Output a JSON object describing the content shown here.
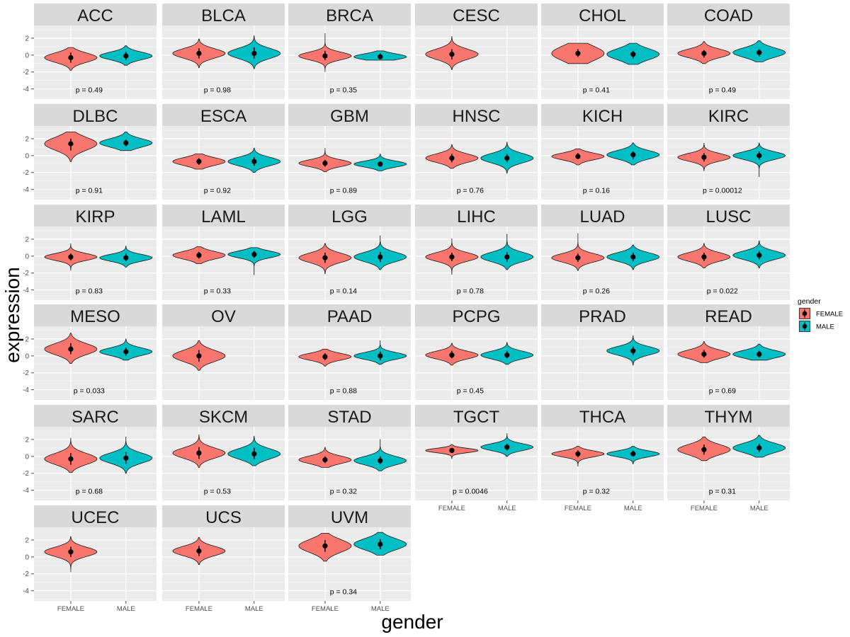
{
  "chart_data": {
    "type": "violin",
    "xlabel": "gender",
    "ylabel": "expression",
    "categories": [
      "FEMALE",
      "MALE"
    ],
    "ylim": [
      -5.2,
      3.5
    ],
    "yticks": [
      2,
      0,
      -2,
      -4
    ],
    "ytick_labels": [
      "2",
      "0",
      "-2",
      "-4"
    ],
    "legend": {
      "title": "gender",
      "placement": "right",
      "entries": [
        {
          "label": "FEMALE",
          "color": "#F8766D"
        },
        {
          "label": "MALE",
          "color": "#00BFC4"
        }
      ]
    },
    "colors": {
      "FEMALE": "#F8766D",
      "MALE": "#00BFC4",
      "panel_bg": "#EBEBEB",
      "strip_bg": "#D9D9D9"
    },
    "panels": [
      {
        "name": "ACC",
        "p": "p = 0.49",
        "female": {
          "min": -1.8,
          "max": 0.9,
          "median": -0.3,
          "sd": 0.55,
          "q1": -0.9,
          "q3": 0.3
        },
        "male": {
          "min": -1.2,
          "max": 1.1,
          "median": -0.1,
          "sd": 0.45,
          "q1": -0.6,
          "q3": 0.4
        }
      },
      {
        "name": "BLCA",
        "p": "p = 0.98",
        "female": {
          "min": -1.5,
          "max": 1.9,
          "median": 0.2,
          "sd": 0.55,
          "q1": -0.4,
          "q3": 0.8
        },
        "male": {
          "min": -1.6,
          "max": 2.3,
          "median": 0.2,
          "sd": 0.6,
          "q1": -0.4,
          "q3": 0.9
        }
      },
      {
        "name": "BRCA",
        "p": "p = 0.35",
        "female": {
          "min": -2.0,
          "max": 2.6,
          "median": -0.1,
          "sd": 0.45,
          "q1": -0.6,
          "q3": 0.5
        },
        "male": {
          "min": -0.6,
          "max": 0.5,
          "median": -0.2,
          "sd": 0.35,
          "q1": -0.4,
          "q3": 0.2
        }
      },
      {
        "name": "CESC",
        "p": "",
        "female": {
          "min": -1.7,
          "max": 2.2,
          "median": 0.1,
          "sd": 0.6,
          "q1": -0.5,
          "q3": 0.7
        },
        "male": null
      },
      {
        "name": "CHOL",
        "p": "p = 0.41",
        "female": {
          "min": -1.0,
          "max": 1.4,
          "median": 0.2,
          "sd": 0.85,
          "q1": -0.2,
          "q3": 0.7
        },
        "male": {
          "min": -1.1,
          "max": 1.4,
          "median": 0.1,
          "sd": 0.65,
          "q1": -0.4,
          "q3": 0.5
        }
      },
      {
        "name": "COAD",
        "p": "p = 0.49",
        "female": {
          "min": -1.0,
          "max": 1.6,
          "median": 0.2,
          "sd": 0.5,
          "q1": -0.3,
          "q3": 0.6
        },
        "male": {
          "min": -0.8,
          "max": 1.7,
          "median": 0.3,
          "sd": 0.55,
          "q1": -0.2,
          "q3": 0.7
        }
      },
      {
        "name": "DLBC",
        "p": "p = 0.91",
        "female": {
          "min": -0.7,
          "max": 2.8,
          "median": 1.4,
          "sd": 0.75,
          "q1": 0.6,
          "q3": 2.0
        },
        "male": {
          "min": 0.6,
          "max": 2.8,
          "median": 1.5,
          "sd": 0.5,
          "q1": 1.1,
          "q3": 1.9
        }
      },
      {
        "name": "ESCA",
        "p": "p = 0.92",
        "female": {
          "min": -1.6,
          "max": 0.2,
          "median": -0.7,
          "sd": 0.45,
          "q1": -1.1,
          "q3": -0.3
        },
        "male": {
          "min": -2.0,
          "max": 0.9,
          "median": -0.7,
          "sd": 0.5,
          "q1": -1.2,
          "q3": -0.2
        }
      },
      {
        "name": "GBM",
        "p": "p = 0.89",
        "female": {
          "min": -1.9,
          "max": 0.9,
          "median": -0.9,
          "sd": 0.4,
          "q1": -1.3,
          "q3": -0.5
        },
        "male": {
          "min": -1.8,
          "max": 0.2,
          "median": -1.0,
          "sd": 0.35,
          "q1": -1.3,
          "q3": -0.7
        }
      },
      {
        "name": "HNSC",
        "p": "p = 0.76",
        "female": {
          "min": -1.5,
          "max": 1.3,
          "median": -0.3,
          "sd": 0.5,
          "q1": -0.8,
          "q3": 0.2
        },
        "male": {
          "min": -2.1,
          "max": 1.6,
          "median": -0.3,
          "sd": 0.55,
          "q1": -0.8,
          "q3": 0.2
        }
      },
      {
        "name": "KICH",
        "p": "p = 0.16",
        "female": {
          "min": -1.1,
          "max": 0.8,
          "median": -0.1,
          "sd": 0.4,
          "q1": -0.4,
          "q3": 0.3
        },
        "male": {
          "min": -1.1,
          "max": 1.5,
          "median": 0.1,
          "sd": 0.5,
          "q1": -0.4,
          "q3": 0.5
        }
      },
      {
        "name": "KIRC",
        "p": "p = 0.00012",
        "female": {
          "min": -1.8,
          "max": 1.5,
          "median": -0.2,
          "sd": 0.45,
          "q1": -0.7,
          "q3": 0.3
        },
        "male": {
          "min": -2.5,
          "max": 1.5,
          "median": 0.0,
          "sd": 0.45,
          "q1": -0.5,
          "q3": 0.5
        }
      },
      {
        "name": "KIRP",
        "p": "p = 0.83",
        "female": {
          "min": -1.7,
          "max": 1.5,
          "median": -0.1,
          "sd": 0.4,
          "q1": -0.5,
          "q3": 0.3
        },
        "male": {
          "min": -1.3,
          "max": 1.2,
          "median": -0.2,
          "sd": 0.4,
          "q1": -0.6,
          "q3": 0.3
        }
      },
      {
        "name": "LAML",
        "p": "p = 0.33",
        "female": {
          "min": -0.9,
          "max": 1.1,
          "median": 0.1,
          "sd": 0.45,
          "q1": -0.3,
          "q3": 0.5
        },
        "male": {
          "min": -2.2,
          "max": 1.0,
          "median": 0.2,
          "sd": 0.4,
          "q1": -0.2,
          "q3": 0.6
        }
      },
      {
        "name": "LGG",
        "p": "p = 0.14",
        "female": {
          "min": -2.1,
          "max": 1.5,
          "median": -0.2,
          "sd": 0.55,
          "q1": -0.8,
          "q3": 0.4
        },
        "male": {
          "min": -1.6,
          "max": 2.4,
          "median": -0.1,
          "sd": 0.55,
          "q1": -0.7,
          "q3": 0.5
        }
      },
      {
        "name": "LIHC",
        "p": "p = 0.78",
        "female": {
          "min": -2.2,
          "max": 2.1,
          "median": -0.1,
          "sd": 0.5,
          "q1": -0.6,
          "q3": 0.4
        },
        "male": {
          "min": -1.6,
          "max": 2.6,
          "median": -0.1,
          "sd": 0.55,
          "q1": -0.7,
          "q3": 0.5
        }
      },
      {
        "name": "LUAD",
        "p": "p = 0.26",
        "female": {
          "min": -1.7,
          "max": 2.7,
          "median": -0.2,
          "sd": 0.5,
          "q1": -0.7,
          "q3": 0.3
        },
        "male": {
          "min": -1.6,
          "max": 1.3,
          "median": -0.1,
          "sd": 0.5,
          "q1": -0.6,
          "q3": 0.4
        }
      },
      {
        "name": "LUSC",
        "p": "p = 0.022",
        "female": {
          "min": -1.4,
          "max": 1.5,
          "median": -0.1,
          "sd": 0.5,
          "q1": -0.6,
          "q3": 0.4
        },
        "male": {
          "min": -1.4,
          "max": 1.8,
          "median": 0.1,
          "sd": 0.5,
          "q1": -0.4,
          "q3": 0.6
        }
      },
      {
        "name": "MESO",
        "p": "p = 0.033",
        "female": {
          "min": -0.9,
          "max": 2.7,
          "median": 0.8,
          "sd": 0.65,
          "q1": 0.2,
          "q3": 1.5
        },
        "male": {
          "min": -0.5,
          "max": 2.0,
          "median": 0.5,
          "sd": 0.45,
          "q1": 0.0,
          "q3": 1.0
        }
      },
      {
        "name": "OV",
        "p": "",
        "female": {
          "min": -1.7,
          "max": 1.8,
          "median": 0.0,
          "sd": 0.65,
          "q1": -0.7,
          "q3": 0.7
        },
        "male": null
      },
      {
        "name": "PAAD",
        "p": "p = 0.88",
        "female": {
          "min": -1.2,
          "max": 0.8,
          "median": -0.1,
          "sd": 0.4,
          "q1": -0.5,
          "q3": 0.3
        },
        "male": {
          "min": -1.0,
          "max": 1.8,
          "median": 0.0,
          "sd": 0.4,
          "q1": -0.5,
          "q3": 0.5
        }
      },
      {
        "name": "PCPG",
        "p": "p = 0.45",
        "female": {
          "min": -1.1,
          "max": 1.5,
          "median": 0.1,
          "sd": 0.45,
          "q1": -0.3,
          "q3": 0.6
        },
        "male": {
          "min": -1.0,
          "max": 1.6,
          "median": 0.1,
          "sd": 0.45,
          "q1": -0.3,
          "q3": 0.6
        }
      },
      {
        "name": "PRAD",
        "p": "",
        "female": null,
        "male": {
          "min": -1.1,
          "max": 2.4,
          "median": 0.6,
          "sd": 0.5,
          "q1": 0.1,
          "q3": 1.1
        }
      },
      {
        "name": "READ",
        "p": "p = 0.69",
        "female": {
          "min": -0.8,
          "max": 1.7,
          "median": 0.2,
          "sd": 0.5,
          "q1": -0.2,
          "q3": 0.7
        },
        "male": {
          "min": -0.5,
          "max": 1.4,
          "median": 0.2,
          "sd": 0.45,
          "q1": -0.2,
          "q3": 0.6
        }
      },
      {
        "name": "SARC",
        "p": "p = 0.68",
        "female": {
          "min": -1.9,
          "max": 2.2,
          "median": -0.3,
          "sd": 0.65,
          "q1": -1.0,
          "q3": 0.4
        },
        "male": {
          "min": -2.0,
          "max": 2.3,
          "median": -0.2,
          "sd": 0.6,
          "q1": -0.9,
          "q3": 0.5
        }
      },
      {
        "name": "SKCM",
        "p": "p = 0.53",
        "female": {
          "min": -1.3,
          "max": 2.6,
          "median": 0.4,
          "sd": 0.6,
          "q1": -0.3,
          "q3": 1.1
        },
        "male": {
          "min": -1.1,
          "max": 2.4,
          "median": 0.3,
          "sd": 0.6,
          "q1": -0.3,
          "q3": 1.0
        }
      },
      {
        "name": "STAD",
        "p": "p = 0.32",
        "female": {
          "min": -1.3,
          "max": 1.1,
          "median": -0.4,
          "sd": 0.45,
          "q1": -0.8,
          "q3": 0.0
        },
        "male": {
          "min": -1.7,
          "max": 2.0,
          "median": -0.5,
          "sd": 0.5,
          "q1": -0.9,
          "q3": 0.0
        }
      },
      {
        "name": "TGCT",
        "p": "p = 0.0046",
        "female": {
          "min": -0.3,
          "max": 1.4,
          "median": 0.7,
          "sd": 0.25,
          "q1": 0.4,
          "q3": 1.0
        },
        "male": {
          "min": 0.0,
          "max": 2.7,
          "median": 1.1,
          "sd": 0.4,
          "q1": 0.7,
          "q3": 1.5
        }
      },
      {
        "name": "THCA",
        "p": "p = 0.32",
        "female": {
          "min": -1.2,
          "max": 1.2,
          "median": 0.3,
          "sd": 0.35,
          "q1": -0.1,
          "q3": 0.7
        },
        "male": {
          "min": -0.9,
          "max": 1.2,
          "median": 0.3,
          "sd": 0.35,
          "q1": 0.0,
          "q3": 0.7
        }
      },
      {
        "name": "THYM",
        "p": "p = 0.31",
        "female": {
          "min": -0.5,
          "max": 2.3,
          "median": 0.8,
          "sd": 0.6,
          "q1": 0.2,
          "q3": 1.4
        },
        "male": {
          "min": -0.1,
          "max": 2.5,
          "median": 1.0,
          "sd": 0.55,
          "q1": 0.5,
          "q3": 1.5
        }
      },
      {
        "name": "UCEC",
        "p": "",
        "female": {
          "min": -1.8,
          "max": 2.4,
          "median": 0.6,
          "sd": 0.55,
          "q1": 0.0,
          "q3": 1.2
        },
        "male": null
      },
      {
        "name": "UCS",
        "p": "",
        "female": {
          "min": -0.9,
          "max": 2.3,
          "median": 0.7,
          "sd": 0.55,
          "q1": 0.1,
          "q3": 1.3
        },
        "male": null
      },
      {
        "name": "UVM",
        "p": "p = 0.34",
        "female": {
          "min": -0.5,
          "max": 2.8,
          "median": 1.3,
          "sd": 0.75,
          "q1": 0.6,
          "q3": 2.0
        },
        "male": {
          "min": 0.2,
          "max": 2.9,
          "median": 1.5,
          "sd": 0.65,
          "q1": 0.9,
          "q3": 2.1
        }
      }
    ],
    "x_axis_bottom_panels": [
      "TGCT",
      "THCA",
      "THYM",
      "UCEC",
      "UCS",
      "UVM"
    ]
  }
}
